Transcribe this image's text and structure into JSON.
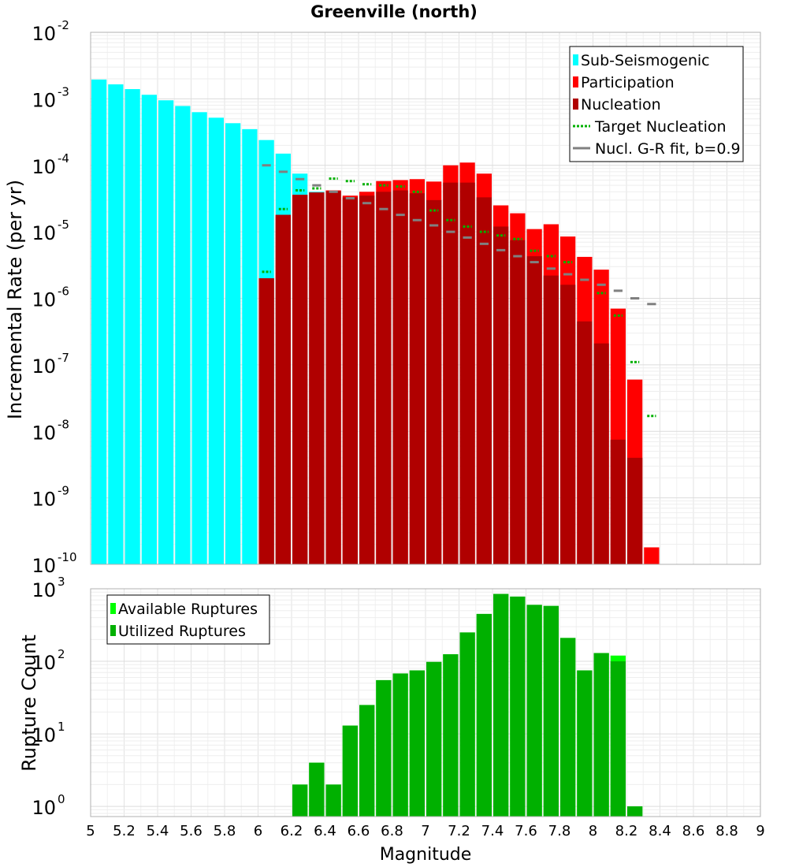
{
  "chart_data": [
    {
      "type": "bar",
      "title": "Greenville (north)",
      "xlabel": "",
      "ylabel": "Incremental Rate (per yr)",
      "xlim": [
        5,
        9
      ],
      "ylim_log10": [
        -10,
        -2
      ],
      "log_y": true,
      "grid": true,
      "legend_position": "top-right",
      "ytick_base": "10",
      "ytick_exponents": [
        "-10",
        "-9",
        "-8",
        "-7",
        "-6",
        "-5",
        "-4",
        "-3",
        "-2"
      ],
      "bin_width": 0.1,
      "legend": [
        {
          "label": "Sub-Seismogenic",
          "color": "#00ffff",
          "kind": "box"
        },
        {
          "label": "Participation",
          "color": "#ff0000",
          "kind": "box"
        },
        {
          "label": "Nucleation",
          "color": "#b00000",
          "kind": "box"
        },
        {
          "label": "Target Nucleation",
          "color": "#00b000",
          "kind": "dotted"
        },
        {
          "label": "Nucl. G-R fit, b=0.9",
          "color": "#808080",
          "kind": "line"
        }
      ],
      "series": [
        {
          "name": "Sub-Seismogenic",
          "color": "#00ffff",
          "style": "bar",
          "x": [
            5.05,
            5.15,
            5.25,
            5.35,
            5.45,
            5.55,
            5.65,
            5.75,
            5.85,
            5.95,
            6.05,
            6.15,
            6.25,
            6.35
          ],
          "values": [
            0.00195,
            0.00165,
            0.0014,
            0.00115,
            0.00095,
            0.00078,
            0.00063,
            0.00052,
            0.00043,
            0.00035,
            0.00024,
            0.00015,
            7.5e-05,
            4e-05
          ]
        },
        {
          "name": "Participation",
          "color": "#ff0000",
          "style": "bar",
          "x": [
            6.05,
            6.15,
            6.25,
            6.35,
            6.45,
            6.55,
            6.65,
            6.75,
            6.85,
            6.95,
            7.05,
            7.15,
            7.25,
            7.35,
            7.45,
            7.55,
            7.65,
            7.75,
            7.85,
            7.95,
            8.05,
            8.15,
            8.25,
            8.35
          ],
          "values": [
            2e-06,
            1.8e-05,
            3.6e-05,
            3.9e-05,
            4.2e-05,
            3.5e-05,
            4e-05,
            5.8e-05,
            6e-05,
            6.2e-05,
            5.7e-05,
            0.0001,
            0.00011,
            7.5e-05,
            2.5e-05,
            1.9e-05,
            1.1e-05,
            1.3e-05,
            8.5e-06,
            4.2e-06,
            2.7e-06,
            7e-07,
            6e-08,
            1.8e-10
          ]
        },
        {
          "name": "Nucleation",
          "color": "#b00000",
          "style": "bar",
          "x": [
            6.05,
            6.15,
            6.25,
            6.35,
            6.45,
            6.55,
            6.65,
            6.75,
            6.85,
            6.95,
            7.05,
            7.15,
            7.25,
            7.35,
            7.45,
            7.55,
            7.65,
            7.75,
            7.85,
            7.95,
            8.05,
            8.15,
            8.25
          ],
          "values": [
            2e-06,
            1.8e-05,
            3.6e-05,
            3.9e-05,
            4.1e-05,
            3.3e-05,
            3.5e-05,
            4e-05,
            4.2e-05,
            3.8e-05,
            3e-05,
            5.5e-05,
            5.5e-05,
            3.3e-05,
            1.2e-05,
            7.5e-06,
            4.3e-06,
            2.2e-06,
            1.6e-06,
            4.5e-07,
            2.1e-07,
            7.5e-09,
            4e-09
          ]
        },
        {
          "name": "Target Nucleation",
          "color": "#00b000",
          "style": "dotted",
          "x": [
            6.05,
            6.15,
            6.25,
            6.35,
            6.45,
            6.55,
            6.65,
            6.75,
            6.85,
            6.95,
            7.05,
            7.15,
            7.25,
            7.35,
            7.45,
            7.55,
            7.65,
            7.75,
            7.85,
            7.95,
            8.05,
            8.15,
            8.25,
            8.35
          ],
          "values": [
            2.5e-06,
            2.2e-05,
            4.2e-05,
            4.5e-05,
            6.3e-05,
            5.8e-05,
            5.2e-05,
            5e-05,
            4.8e-05,
            4e-05,
            2.1e-05,
            1.5e-05,
            1.2e-05,
            1e-05,
            8.8e-06,
            7.8e-06,
            5.2e-06,
            4.3e-06,
            3.5e-06,
            1.9e-06,
            1.2e-06,
            5.5e-07,
            1.1e-07,
            1.7e-08
          ]
        },
        {
          "name": "Nucl. G-R fit, b=0.9",
          "color": "#808080",
          "style": "line",
          "x": [
            6.05,
            6.15,
            6.25,
            6.35,
            6.45,
            6.55,
            6.65,
            6.75,
            6.85,
            6.95,
            7.05,
            7.15,
            7.25,
            7.35,
            7.45,
            7.55,
            7.65,
            7.75,
            7.85,
            7.95,
            8.05,
            8.15,
            8.25,
            8.35
          ],
          "values": [
            0.0001,
            8e-05,
            6.2e-05,
            5e-05,
            4e-05,
            3.2e-05,
            2.7e-05,
            2.2e-05,
            1.8e-05,
            1.5e-05,
            1.25e-05,
            1e-05,
            8.2e-06,
            6.6e-06,
            5.3e-06,
            4.3e-06,
            3.5e-06,
            2.8e-06,
            2.3e-06,
            1.9e-06,
            1.6e-06,
            1.3e-06,
            1e-06,
            8.2e-07
          ]
        }
      ]
    },
    {
      "type": "bar",
      "title": "",
      "xlabel": "Magnitude",
      "ylabel": "Rupture Count",
      "xlim": [
        5,
        9
      ],
      "ylim_log10": [
        -0.14,
        3
      ],
      "log_y": true,
      "grid": true,
      "legend_position": "top-left",
      "ytick_base": "10",
      "ytick_exponents": [
        "0",
        "1",
        "2",
        "3"
      ],
      "xticks": [
        "5",
        "5.2",
        "5.4",
        "5.6",
        "5.8",
        "6",
        "6.2",
        "6.4",
        "6.6",
        "6.8",
        "7",
        "7.2",
        "7.4",
        "7.6",
        "7.8",
        "8",
        "8.2",
        "8.4",
        "8.6",
        "8.8",
        "9"
      ],
      "bin_width": 0.1,
      "legend": [
        {
          "label": "Available Ruptures",
          "color": "#00ff00",
          "kind": "box"
        },
        {
          "label": "Utilized Ruptures",
          "color": "#00b000",
          "kind": "box"
        }
      ],
      "series": [
        {
          "name": "Available Ruptures",
          "color": "#00ff00",
          "style": "bar",
          "x": [
            6.25,
            6.35,
            6.45,
            6.55,
            6.65,
            6.75,
            6.85,
            6.95,
            7.05,
            7.15,
            7.25,
            7.35,
            7.45,
            7.55,
            7.65,
            7.75,
            7.85,
            7.95,
            8.05,
            8.15,
            8.25
          ],
          "values": [
            2,
            4,
            2,
            13,
            25,
            55,
            68,
            75,
            98,
            125,
            250,
            450,
            850,
            780,
            600,
            580,
            210,
            75,
            130,
            120,
            1
          ]
        },
        {
          "name": "Utilized Ruptures",
          "color": "#00b000",
          "style": "bar",
          "x": [
            6.25,
            6.35,
            6.45,
            6.55,
            6.65,
            6.75,
            6.85,
            6.95,
            7.05,
            7.15,
            7.25,
            7.35,
            7.45,
            7.55,
            7.65,
            7.75,
            7.85,
            7.95,
            8.05,
            8.15,
            8.25
          ],
          "values": [
            2,
            4,
            2,
            13,
            25,
            55,
            68,
            75,
            98,
            125,
            250,
            450,
            850,
            780,
            600,
            580,
            210,
            75,
            130,
            100,
            1
          ]
        }
      ]
    }
  ]
}
